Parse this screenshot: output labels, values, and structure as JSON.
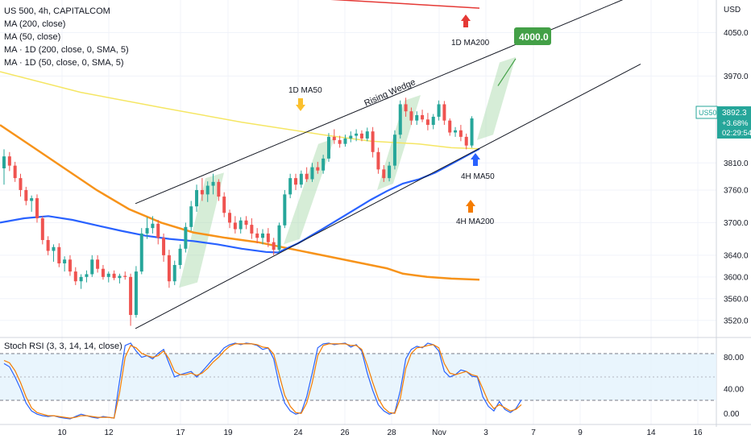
{
  "legend": {
    "line1": "US 500, 4h, CAPITALCOM",
    "line2": "MA (200, close)",
    "line3": "MA (50, close)",
    "line4": "MA · 1D (200, close, 0, SMA, 5)",
    "line5": "MA · 1D (50, close, 0, SMA, 5)"
  },
  "rsi_legend": "Stoch RSI (3, 3, 14, 14, close)",
  "price_axis": {
    "currency": "USD",
    "ticks": [
      "4050.0",
      "3970.0",
      "3810.0",
      "3760.0",
      "3700.0",
      "3640.0",
      "3600.0",
      "3560.0",
      "3520.0"
    ],
    "symbol_tag": "US500",
    "last_price": "3892.3",
    "change": "+3.68%",
    "countdown": "02:29:54"
  },
  "rsi_axis": {
    "ticks": [
      "80.00",
      "40.00",
      "0.00"
    ]
  },
  "time_axis": {
    "ticks": [
      "10",
      "12",
      "17",
      "19",
      "24",
      "26",
      "28",
      "Nov",
      "3",
      "7",
      "9",
      "14",
      "16"
    ]
  },
  "annotations": {
    "target": "4000.0",
    "ma200_1d": "1D MA200",
    "ma50_1d": "1D MA50",
    "pattern": "Rising Wedge",
    "ma50_4h": "4H MA50",
    "ma200_4h": "4H MA200"
  },
  "colors": {
    "up": "#26a69a",
    "down": "#ef5350",
    "ma200_4h": "#f7931a",
    "ma50_4h": "#2962ff",
    "ma50_1d": "#f5e663",
    "ma200_1d": "#e53935",
    "target_box": "#43a047",
    "rsi_k": "#2962ff",
    "rsi_d": "#f57c00",
    "rsi_band": "#e3f2fd"
  },
  "chart_data": [
    {
      "type": "candlestick",
      "title": "US 500, 4h, CAPITALCOM",
      "ylabel": "USD",
      "ylim": [
        3490,
        4110
      ],
      "candles": [
        [
          3800,
          3835,
          3770,
          3822
        ],
        [
          3822,
          3830,
          3795,
          3805
        ],
        [
          3805,
          3812,
          3775,
          3782
        ],
        [
          3782,
          3790,
          3748,
          3760
        ],
        [
          3760,
          3766,
          3732,
          3740
        ],
        [
          3740,
          3750,
          3720,
          3745
        ],
        [
          3745,
          3752,
          3700,
          3708
        ],
        [
          3708,
          3712,
          3660,
          3668
        ],
        [
          3668,
          3675,
          3640,
          3648
        ],
        [
          3648,
          3660,
          3628,
          3655
        ],
        [
          3655,
          3662,
          3618,
          3625
        ],
        [
          3625,
          3638,
          3610,
          3632
        ],
        [
          3632,
          3640,
          3602,
          3610
        ],
        [
          3610,
          3618,
          3585,
          3592
        ],
        [
          3592,
          3605,
          3578,
          3600
        ],
        [
          3600,
          3612,
          3590,
          3605
        ],
        [
          3605,
          3640,
          3600,
          3632
        ],
        [
          3632,
          3640,
          3608,
          3615
        ],
        [
          3615,
          3622,
          3595,
          3600
        ],
        [
          3600,
          3610,
          3590,
          3606
        ],
        [
          3606,
          3612,
          3594,
          3598
        ],
        [
          3598,
          3606,
          3588,
          3602
        ],
        [
          3602,
          3610,
          3595,
          3600
        ],
        [
          3600,
          3606,
          3510,
          3530
        ],
        [
          3530,
          3620,
          3525,
          3610
        ],
        [
          3610,
          3690,
          3605,
          3680
        ],
        [
          3680,
          3710,
          3670,
          3690
        ],
        [
          3690,
          3712,
          3680,
          3698
        ],
        [
          3698,
          3705,
          3660,
          3672
        ],
        [
          3672,
          3680,
          3628,
          3640
        ],
        [
          3640,
          3650,
          3580,
          3592
        ],
        [
          3592,
          3630,
          3585,
          3622
        ],
        [
          3622,
          3660,
          3615,
          3652
        ],
        [
          3652,
          3700,
          3645,
          3692
        ],
        [
          3692,
          3740,
          3685,
          3730
        ],
        [
          3730,
          3770,
          3720,
          3760
        ],
        [
          3760,
          3782,
          3740,
          3752
        ],
        [
          3752,
          3776,
          3738,
          3768
        ],
        [
          3768,
          3790,
          3752,
          3775
        ],
        [
          3775,
          3780,
          3740,
          3748
        ],
        [
          3748,
          3756,
          3710,
          3718
        ],
        [
          3718,
          3724,
          3690,
          3700
        ],
        [
          3700,
          3712,
          3680,
          3688
        ],
        [
          3688,
          3710,
          3680,
          3704
        ],
        [
          3704,
          3712,
          3688,
          3696
        ],
        [
          3696,
          3708,
          3670,
          3680
        ],
        [
          3680,
          3690,
          3662,
          3672
        ],
        [
          3672,
          3688,
          3660,
          3680
        ],
        [
          3680,
          3690,
          3655,
          3664
        ],
        [
          3664,
          3672,
          3640,
          3650
        ],
        [
          3650,
          3700,
          3645,
          3695
        ],
        [
          3695,
          3760,
          3690,
          3752
        ],
        [
          3752,
          3790,
          3745,
          3782
        ],
        [
          3782,
          3790,
          3760,
          3770
        ],
        [
          3770,
          3796,
          3764,
          3790
        ],
        [
          3790,
          3802,
          3775,
          3780
        ],
        [
          3780,
          3810,
          3775,
          3802
        ],
        [
          3802,
          3812,
          3790,
          3796
        ],
        [
          3796,
          3825,
          3790,
          3818
        ],
        [
          3818,
          3865,
          3812,
          3858
        ],
        [
          3858,
          3872,
          3845,
          3852
        ],
        [
          3852,
          3860,
          3838,
          3845
        ],
        [
          3845,
          3862,
          3840,
          3855
        ],
        [
          3855,
          3868,
          3848,
          3860
        ],
        [
          3860,
          3872,
          3850,
          3864
        ],
        [
          3864,
          3870,
          3850,
          3855
        ],
        [
          3855,
          3875,
          3850,
          3868
        ],
        [
          3868,
          3876,
          3820,
          3830
        ],
        [
          3830,
          3838,
          3790,
          3798
        ],
        [
          3798,
          3806,
          3775,
          3782
        ],
        [
          3782,
          3812,
          3776,
          3805
        ],
        [
          3805,
          3870,
          3798,
          3862
        ],
        [
          3862,
          3925,
          3855,
          3918
        ],
        [
          3918,
          3930,
          3895,
          3905
        ],
        [
          3905,
          3912,
          3880,
          3888
        ],
        [
          3888,
          3905,
          3880,
          3898
        ],
        [
          3898,
          3908,
          3885,
          3890
        ],
        [
          3890,
          3902,
          3870,
          3880
        ],
        [
          3880,
          3900,
          3872,
          3895
        ],
        [
          3895,
          3925,
          3888,
          3918
        ],
        [
          3918,
          3924,
          3880,
          3888
        ],
        [
          3888,
          3892,
          3860,
          3866
        ],
        [
          3866,
          3876,
          3858,
          3870
        ],
        [
          3870,
          3880,
          3850,
          3858
        ],
        [
          3858,
          3864,
          3835,
          3842
        ],
        [
          3842,
          3896,
          3838,
          3892
        ]
      ],
      "moving_averages": {
        "ma200_4h": [
          [
            0,
            3880
          ],
          [
            40,
            3840
          ],
          [
            80,
            3800
          ],
          [
            120,
            3760
          ],
          [
            160,
            3725
          ],
          [
            200,
            3700
          ],
          [
            240,
            3682
          ],
          [
            280,
            3672
          ],
          [
            320,
            3664
          ],
          [
            360,
            3652
          ],
          [
            400,
            3640
          ],
          [
            440,
            3628
          ],
          [
            480,
            3616
          ],
          [
            500,
            3606
          ],
          [
            530,
            3600
          ],
          [
            560,
            3597
          ],
          [
            595,
            3595
          ]
        ],
        "ma50_4h": [
          [
            0,
            3700
          ],
          [
            30,
            3708
          ],
          [
            60,
            3712
          ],
          [
            90,
            3705
          ],
          [
            120,
            3695
          ],
          [
            150,
            3685
          ],
          [
            180,
            3676
          ],
          [
            210,
            3670
          ],
          [
            240,
            3666
          ],
          [
            270,
            3660
          ],
          [
            300,
            3652
          ],
          [
            330,
            3646
          ],
          [
            345,
            3645
          ],
          [
            370,
            3662
          ],
          [
            400,
            3688
          ],
          [
            430,
            3715
          ],
          [
            460,
            3742
          ],
          [
            480,
            3758
          ],
          [
            500,
            3772
          ],
          [
            520,
            3780
          ],
          [
            540,
            3792
          ],
          [
            560,
            3808
          ],
          [
            580,
            3824
          ],
          [
            595,
            3836
          ]
        ],
        "ma50_1d": [
          [
            0,
            3978
          ],
          [
            100,
            3940
          ],
          [
            200,
            3912
          ],
          [
            300,
            3885
          ],
          [
            400,
            3862
          ],
          [
            460,
            3850
          ],
          [
            520,
            3845
          ],
          [
            560,
            3838
          ],
          [
            595,
            3836
          ]
        ],
        "ma200_1d": [
          [
            365,
            4115
          ],
          [
            595,
            4095
          ]
        ]
      },
      "wedge": {
        "upper": [
          [
            168,
            3735
          ],
          [
            780,
            4115
          ]
        ],
        "lower": [
          [
            168,
            3505
          ],
          [
            795,
            3992
          ]
        ]
      },
      "target": 4000.0
    },
    {
      "type": "line",
      "title": "Stoch RSI (3, 3, 14, 14, close)",
      "ylim": [
        0,
        100
      ],
      "bands": [
        20,
        50,
        80
      ],
      "series": [
        {
          "name": "K",
          "values": [
            72,
            68,
            55,
            40,
            22,
            12,
            8,
            6,
            5,
            6,
            4,
            3,
            2,
            5,
            8,
            6,
            4,
            3,
            5,
            4,
            3,
            50,
            95,
            98,
            88,
            80,
            82,
            78,
            85,
            90,
            72,
            55,
            58,
            60,
            62,
            55,
            62,
            70,
            78,
            84,
            92,
            96,
            98,
            96,
            98,
            97,
            95,
            90,
            92,
            78,
            45,
            22,
            12,
            8,
            10,
            30,
            60,
            92,
            97,
            98,
            96,
            97,
            98,
            93,
            96,
            88,
            60,
            38,
            20,
            12,
            8,
            10,
            38,
            78,
            90,
            94,
            92,
            98,
            96,
            88,
            62,
            55,
            58,
            64,
            62,
            56,
            55,
            30,
            18,
            12,
            24,
            14,
            10,
            15,
            26
          ]
        },
        {
          "name": "D",
          "values": [
            76,
            73,
            63,
            48,
            30,
            16,
            10,
            8,
            6,
            6,
            5,
            4,
            3,
            4,
            6,
            6,
            5,
            4,
            4,
            4,
            3,
            35,
            80,
            95,
            92,
            85,
            82,
            80,
            82,
            88,
            78,
            62,
            58,
            58,
            60,
            57,
            60,
            66,
            74,
            80,
            88,
            94,
            97,
            97,
            97,
            97,
            96,
            93,
            92,
            84,
            58,
            32,
            18,
            10,
            9,
            22,
            48,
            82,
            95,
            97,
            97,
            97,
            97,
            95,
            95,
            90,
            70,
            48,
            28,
            16,
            10,
            9,
            28,
            66,
            85,
            92,
            93,
            95,
            96,
            92,
            72,
            60,
            58,
            60,
            62,
            58,
            56,
            40,
            24,
            15,
            20,
            16,
            12,
            14,
            20
          ]
        }
      ]
    }
  ]
}
